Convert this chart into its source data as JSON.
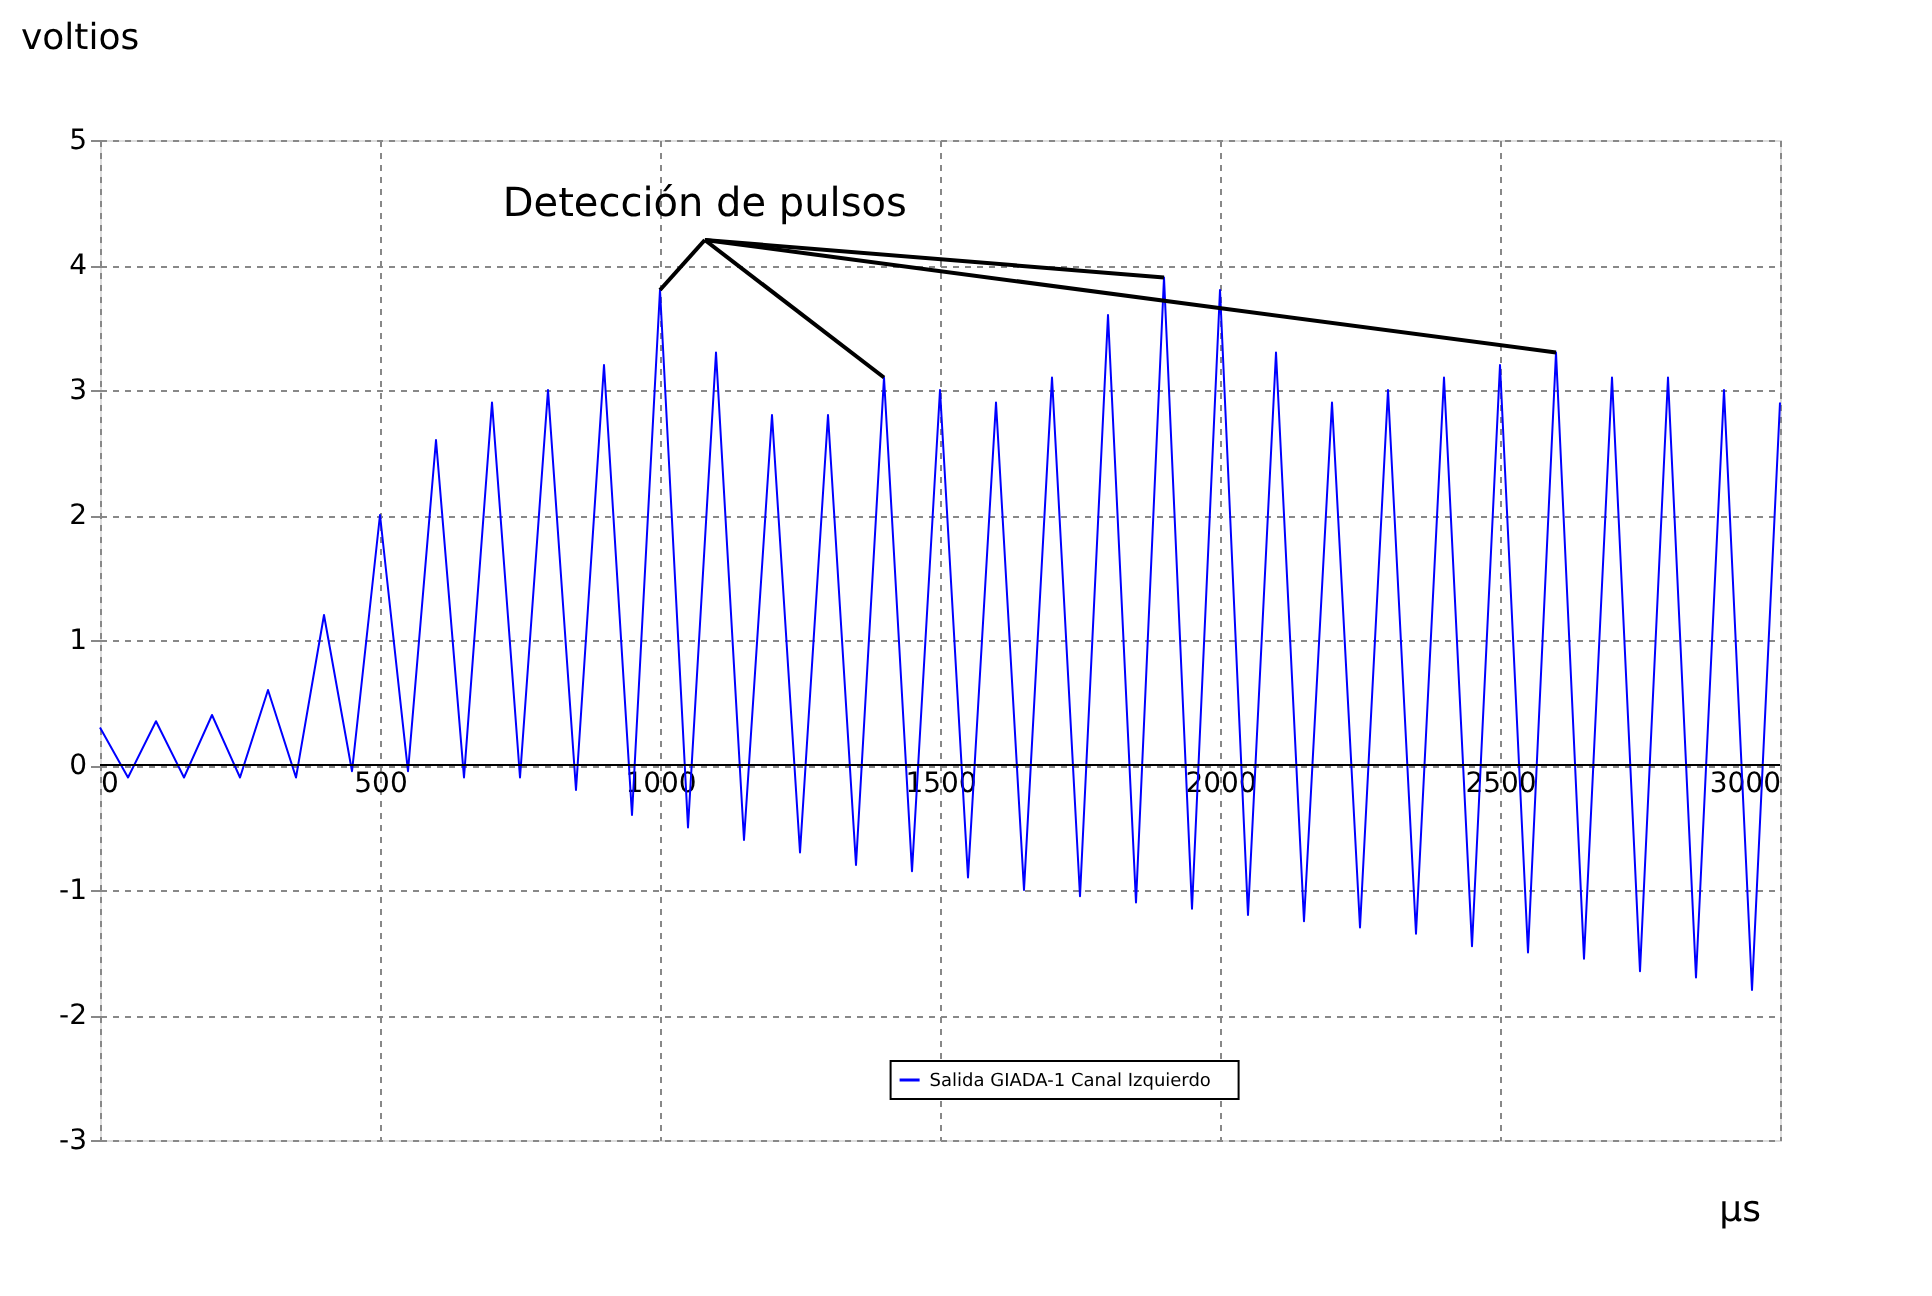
{
  "chart_data": {
    "type": "line",
    "ylabel": "voltios",
    "xlabel": "µs",
    "x": [
      0,
      50,
      100,
      150,
      200,
      250,
      300,
      350,
      400,
      450,
      500,
      550,
      600,
      650,
      700,
      750,
      800,
      850,
      900,
      950,
      1000,
      1050,
      1100,
      1150,
      1200,
      1250,
      1300,
      1350,
      1400,
      1450,
      1500,
      1550,
      1600,
      1650,
      1700,
      1750,
      1800,
      1850,
      1900,
      1950,
      2000,
      2050,
      2100,
      2150,
      2200,
      2250,
      2300,
      2350,
      2400,
      2450,
      2500,
      2550,
      2600,
      2650,
      2700,
      2750,
      2800,
      2850,
      2900,
      2950,
      3000
    ],
    "series": [
      {
        "name": "Salida  GIADA-1  Canal  Izquierdo",
        "color": "#0000ff",
        "values": [
          0.3,
          -0.1,
          0.35,
          -0.1,
          0.4,
          -0.1,
          0.6,
          -0.1,
          1.2,
          -0.05,
          2.0,
          -0.05,
          2.6,
          -0.1,
          2.9,
          -0.1,
          3.0,
          -0.2,
          3.2,
          -0.4,
          3.8,
          -0.5,
          3.3,
          -0.6,
          2.8,
          -0.7,
          2.8,
          -0.8,
          3.1,
          -0.85,
          3.0,
          -0.9,
          2.9,
          -1.0,
          3.1,
          -1.05,
          3.6,
          -1.1,
          3.9,
          -1.15,
          3.8,
          -1.2,
          3.3,
          -1.25,
          2.9,
          -1.3,
          3.0,
          -1.35,
          3.1,
          -1.45,
          3.2,
          -1.5,
          3.3,
          -1.55,
          3.1,
          -1.65,
          3.1,
          -1.7,
          3.0,
          -1.8,
          2.9
        ]
      }
    ],
    "annotations": [
      {
        "text": "Detección de pulsos",
        "x": 1900,
        "y": 3.9
      }
    ],
    "xlim": [
      0,
      3000
    ],
    "xticks": [
      0,
      500,
      1000,
      1500,
      2000,
      2500,
      3000
    ],
    "ylim": [
      -3,
      5
    ],
    "yticks": [
      -3,
      -2,
      -1,
      0,
      1,
      2,
      3,
      4,
      5
    ],
    "grid": true,
    "legend": "bottom",
    "marker": "none",
    "line_style": "solid"
  }
}
